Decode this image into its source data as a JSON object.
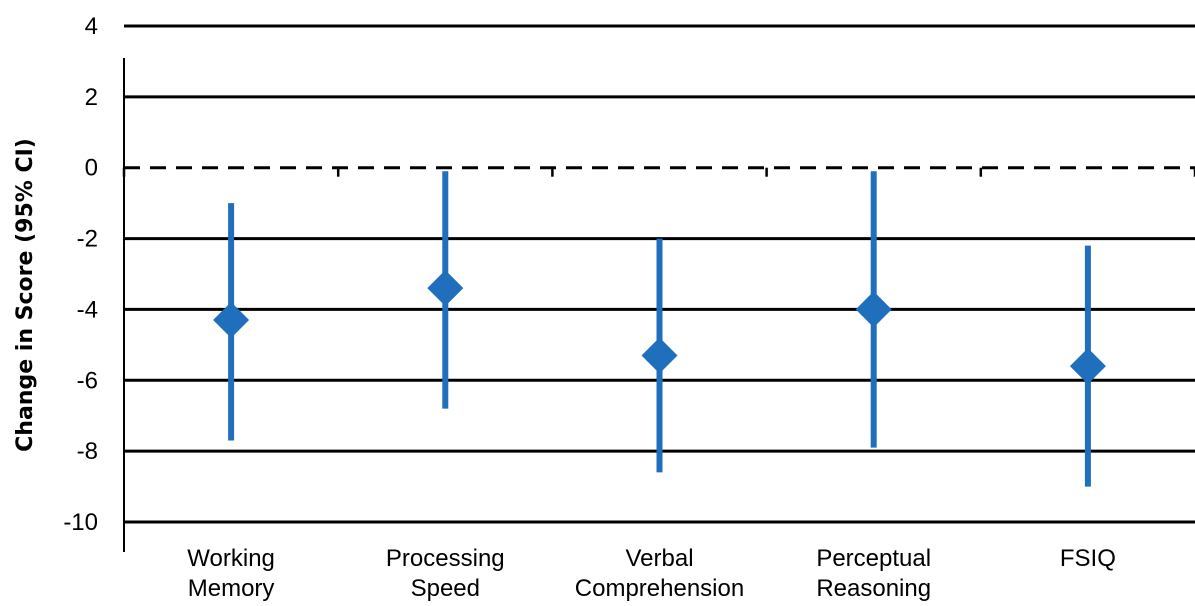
{
  "chart_data": {
    "type": "scatter",
    "subtype": "point-with-error-bars",
    "ylabel": "Change in Score (95% CI)",
    "xlabel": "",
    "categories": [
      [
        "Working",
        "Memory"
      ],
      [
        "Processing",
        "Speed"
      ],
      [
        "Verbal",
        "Comprehension"
      ],
      [
        "Perceptual",
        "Reasoning"
      ],
      [
        "FSIQ"
      ]
    ],
    "points": [
      {
        "value": -4.3,
        "lower": -7.7,
        "upper": -1.0
      },
      {
        "value": -3.4,
        "lower": -6.8,
        "upper": -0.1
      },
      {
        "value": -5.3,
        "lower": -8.6,
        "upper": -2.0
      },
      {
        "value": -4.0,
        "lower": -7.9,
        "upper": -0.1
      },
      {
        "value": -5.6,
        "lower": -9.0,
        "upper": -2.2
      }
    ],
    "ylim": [
      -10,
      4
    ],
    "yticks": [
      4,
      2,
      0,
      -2,
      -4,
      -6,
      -8,
      -10
    ],
    "reference_line": {
      "y": 0,
      "style": "dashed"
    },
    "grid": true,
    "legend": "none",
    "colors": {
      "marker": "#1f6fbd",
      "grid": "#000000"
    }
  }
}
